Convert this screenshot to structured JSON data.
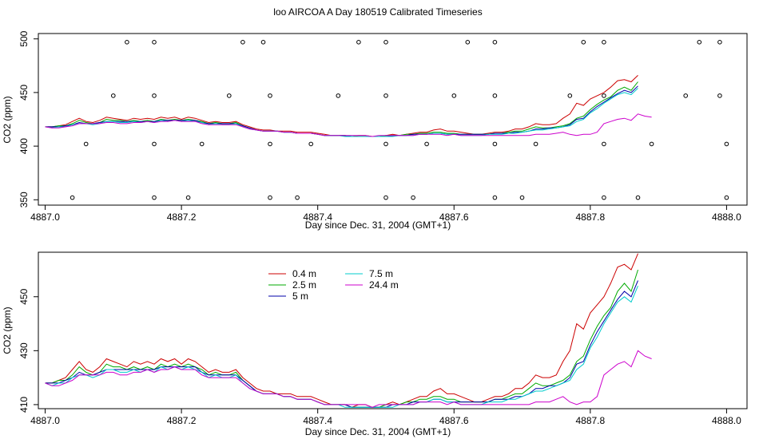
{
  "title": "loo AIRCOA A  Day 180519  Calibrated Timeseries",
  "colors": {
    "0.4 m": "#cc0000",
    "2.5 m": "#00aa00",
    "5 m": "#0000aa",
    "7.5 m": "#00cccc",
    "24.4 m": "#cc00cc"
  },
  "chart_data": [
    {
      "type": "line",
      "xlabel": "Day since Dec. 31, 2004 (GMT+1)",
      "ylabel": "CO2 (ppm)",
      "xlim": [
        4886.99,
        4888.03
      ],
      "ylim": [
        345,
        505
      ],
      "xticks": [
        4887.0,
        4887.2,
        4887.4,
        4887.6,
        4887.8,
        4888.0
      ],
      "xtick_labels": [
        "4887.0",
        "4887.2",
        "4887.4",
        "4887.6",
        "4887.8",
        "4888.0"
      ],
      "yticks": [
        350,
        400,
        450,
        500
      ],
      "ytick_labels": [
        "350",
        "400",
        "450",
        "500"
      ],
      "x_start": 4887.0,
      "x_step": 0.01,
      "series": [
        {
          "name": "0.4 m",
          "values": [
            418,
            418,
            419,
            420,
            423,
            426,
            423,
            422,
            424,
            427,
            426,
            425,
            424,
            426,
            425,
            426,
            425,
            427,
            426,
            427,
            425,
            427,
            426,
            424,
            422,
            423,
            422,
            422,
            423,
            420,
            418,
            416,
            415,
            415,
            414,
            414,
            414,
            413,
            413,
            413,
            412,
            411,
            410,
            410,
            410,
            409,
            410,
            410,
            409,
            409,
            410,
            411,
            410,
            411,
            412,
            413,
            413,
            415,
            416,
            414,
            414,
            413,
            412,
            411,
            411,
            412,
            413,
            413,
            414,
            416,
            416,
            418,
            421,
            420,
            420,
            421,
            426,
            430,
            440,
            438,
            444,
            447,
            450,
            455,
            461,
            462,
            460,
            466
          ]
        },
        {
          "name": "2.5 m",
          "values": [
            418,
            418,
            419,
            419,
            421,
            424,
            422,
            421,
            422,
            425,
            424,
            424,
            423,
            424,
            423,
            424,
            423,
            425,
            424,
            425,
            424,
            425,
            424,
            423,
            421,
            422,
            421,
            421,
            422,
            419,
            417,
            415,
            414,
            414,
            414,
            413,
            413,
            412,
            412,
            412,
            411,
            410,
            410,
            410,
            410,
            409,
            409,
            409,
            409,
            409,
            410,
            410,
            410,
            411,
            411,
            412,
            412,
            413,
            413,
            412,
            412,
            411,
            411,
            411,
            411,
            411,
            412,
            412,
            413,
            414,
            414,
            416,
            418,
            417,
            417,
            418,
            419,
            421,
            426,
            428,
            434,
            439,
            443,
            446,
            452,
            455,
            452,
            460
          ]
        },
        {
          "name": "5 m",
          "values": [
            418,
            418,
            418,
            419,
            420,
            422,
            421,
            421,
            422,
            423,
            423,
            423,
            423,
            423,
            423,
            423,
            423,
            424,
            424,
            424,
            424,
            424,
            424,
            422,
            421,
            421,
            421,
            421,
            421,
            419,
            417,
            415,
            414,
            414,
            414,
            413,
            413,
            412,
            412,
            412,
            411,
            410,
            410,
            410,
            410,
            409,
            409,
            409,
            409,
            409,
            409,
            410,
            410,
            410,
            411,
            411,
            411,
            412,
            412,
            411,
            411,
            411,
            411,
            411,
            411,
            411,
            412,
            412,
            412,
            413,
            413,
            414,
            416,
            416,
            417,
            417,
            418,
            420,
            425,
            426,
            432,
            437,
            441,
            445,
            449,
            452,
            450,
            456
          ]
        },
        {
          "name": "7.5 m",
          "values": [
            418,
            417,
            418,
            418,
            420,
            421,
            421,
            420,
            421,
            423,
            423,
            422,
            422,
            423,
            422,
            423,
            422,
            424,
            423,
            424,
            423,
            424,
            423,
            422,
            420,
            421,
            420,
            420,
            421,
            418,
            416,
            415,
            414,
            414,
            414,
            413,
            413,
            412,
            412,
            412,
            411,
            410,
            410,
            410,
            409,
            409,
            409,
            409,
            409,
            409,
            409,
            409,
            410,
            410,
            410,
            411,
            411,
            412,
            412,
            411,
            411,
            410,
            410,
            410,
            410,
            411,
            411,
            411,
            412,
            412,
            413,
            414,
            415,
            415,
            416,
            417,
            418,
            419,
            423,
            425,
            431,
            435,
            440,
            444,
            448,
            450,
            448,
            454
          ]
        },
        {
          "name": "24.4 m",
          "values": [
            418,
            417,
            417,
            418,
            419,
            421,
            421,
            421,
            421,
            422,
            422,
            421,
            421,
            422,
            422,
            423,
            422,
            423,
            423,
            424,
            423,
            423,
            423,
            421,
            420,
            420,
            420,
            420,
            420,
            418,
            416,
            415,
            414,
            414,
            414,
            413,
            413,
            412,
            412,
            412,
            411,
            410,
            410,
            410,
            410,
            410,
            410,
            410,
            409,
            410,
            410,
            410,
            410,
            410,
            410,
            411,
            411,
            411,
            411,
            410,
            411,
            410,
            410,
            410,
            410,
            410,
            410,
            410,
            410,
            410,
            410,
            410,
            411,
            411,
            411,
            412,
            413,
            411,
            410,
            411,
            411,
            413,
            421,
            423,
            425,
            426,
            424,
            430,
            428,
            427
          ]
        }
      ],
      "outliers_top": [
        4887.12,
        4887.16,
        4887.29,
        4887.32,
        4887.46,
        4887.5,
        4887.62,
        4887.66,
        4887.79,
        4887.82,
        4887.96,
        4887.99
      ],
      "outliers_upper": [
        4887.1,
        4887.16,
        4887.27,
        4887.33,
        4887.43,
        4887.5,
        4887.6,
        4887.66,
        4887.77,
        4887.82,
        4887.94,
        4887.99
      ],
      "outliers_lower": [
        4887.06,
        4887.16,
        4887.23,
        4887.33,
        4887.39,
        4887.5,
        4887.56,
        4887.66,
        4887.72,
        4887.82,
        4887.89,
        4888.0
      ],
      "outliers_bottom": [
        4887.04,
        4887.16,
        4887.21,
        4887.33,
        4887.37,
        4887.5,
        4887.54,
        4887.66,
        4887.7,
        4887.82,
        4887.87,
        4888.0
      ],
      "outlier_levels": [
        497,
        447,
        402,
        352
      ]
    },
    {
      "type": "line",
      "xlabel": "Day since Dec. 31, 2004 (GMT+1)",
      "ylabel": "CO2 (ppm)",
      "xlim": [
        4886.99,
        4888.03
      ],
      "ylim": [
        408.5,
        466.5
      ],
      "xticks": [
        4887.0,
        4887.2,
        4887.4,
        4887.6,
        4887.8,
        4888.0
      ],
      "xtick_labels": [
        "4887.0",
        "4887.2",
        "4887.4",
        "4887.6",
        "4887.8",
        "4888.0"
      ],
      "yticks": [
        410,
        430,
        450
      ],
      "ytick_labels": [
        "410",
        "430",
        "450"
      ],
      "legend_position": "top-left",
      "legend": [
        "0.4 m",
        "2.5 m",
        "5 m",
        "7.5 m",
        "24.4 m"
      ],
      "x_start": 4887.0,
      "x_step": 0.01,
      "series_ref": "same as upper panel"
    }
  ]
}
